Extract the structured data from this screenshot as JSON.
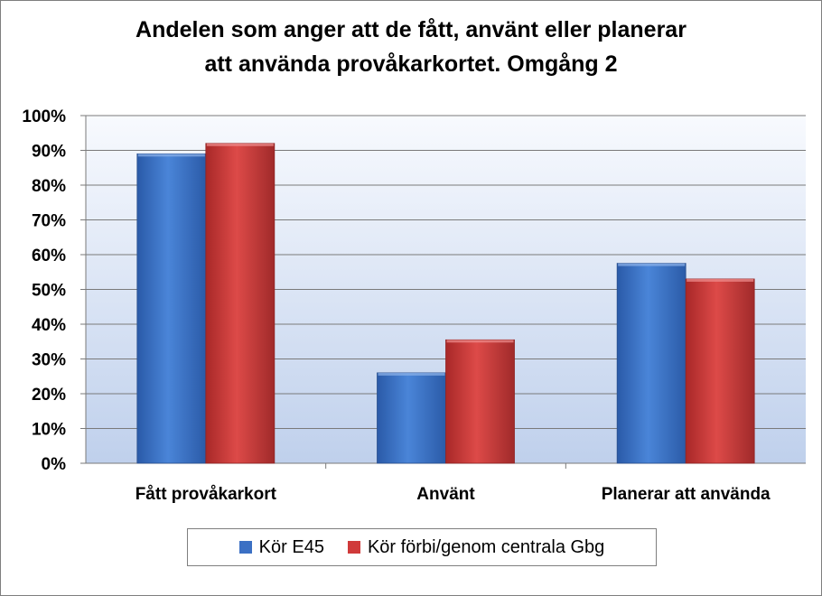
{
  "chart_data": {
    "type": "bar",
    "title_lines": [
      "Andelen som anger att de fått, använt eller planerar",
      "att använda provåkarkortet. Omgång 2"
    ],
    "categories": [
      "Fått provåkarkort",
      "Använt",
      "Planerar att använda"
    ],
    "series": [
      {
        "name": "Kör E45",
        "values": [
          0.89,
          0.26,
          0.575
        ],
        "color": "#3b70c4"
      },
      {
        "name": "Kör förbi/genom centrala Gbg",
        "values": [
          0.92,
          0.355,
          0.53
        ],
        "color": "#d03a3a"
      }
    ],
    "y_ticks": [
      "0%",
      "10%",
      "20%",
      "30%",
      "40%",
      "50%",
      "60%",
      "70%",
      "80%",
      "90%",
      "100%"
    ],
    "ylim": [
      0,
      1
    ],
    "grid": true,
    "legend_position": "bottom"
  }
}
